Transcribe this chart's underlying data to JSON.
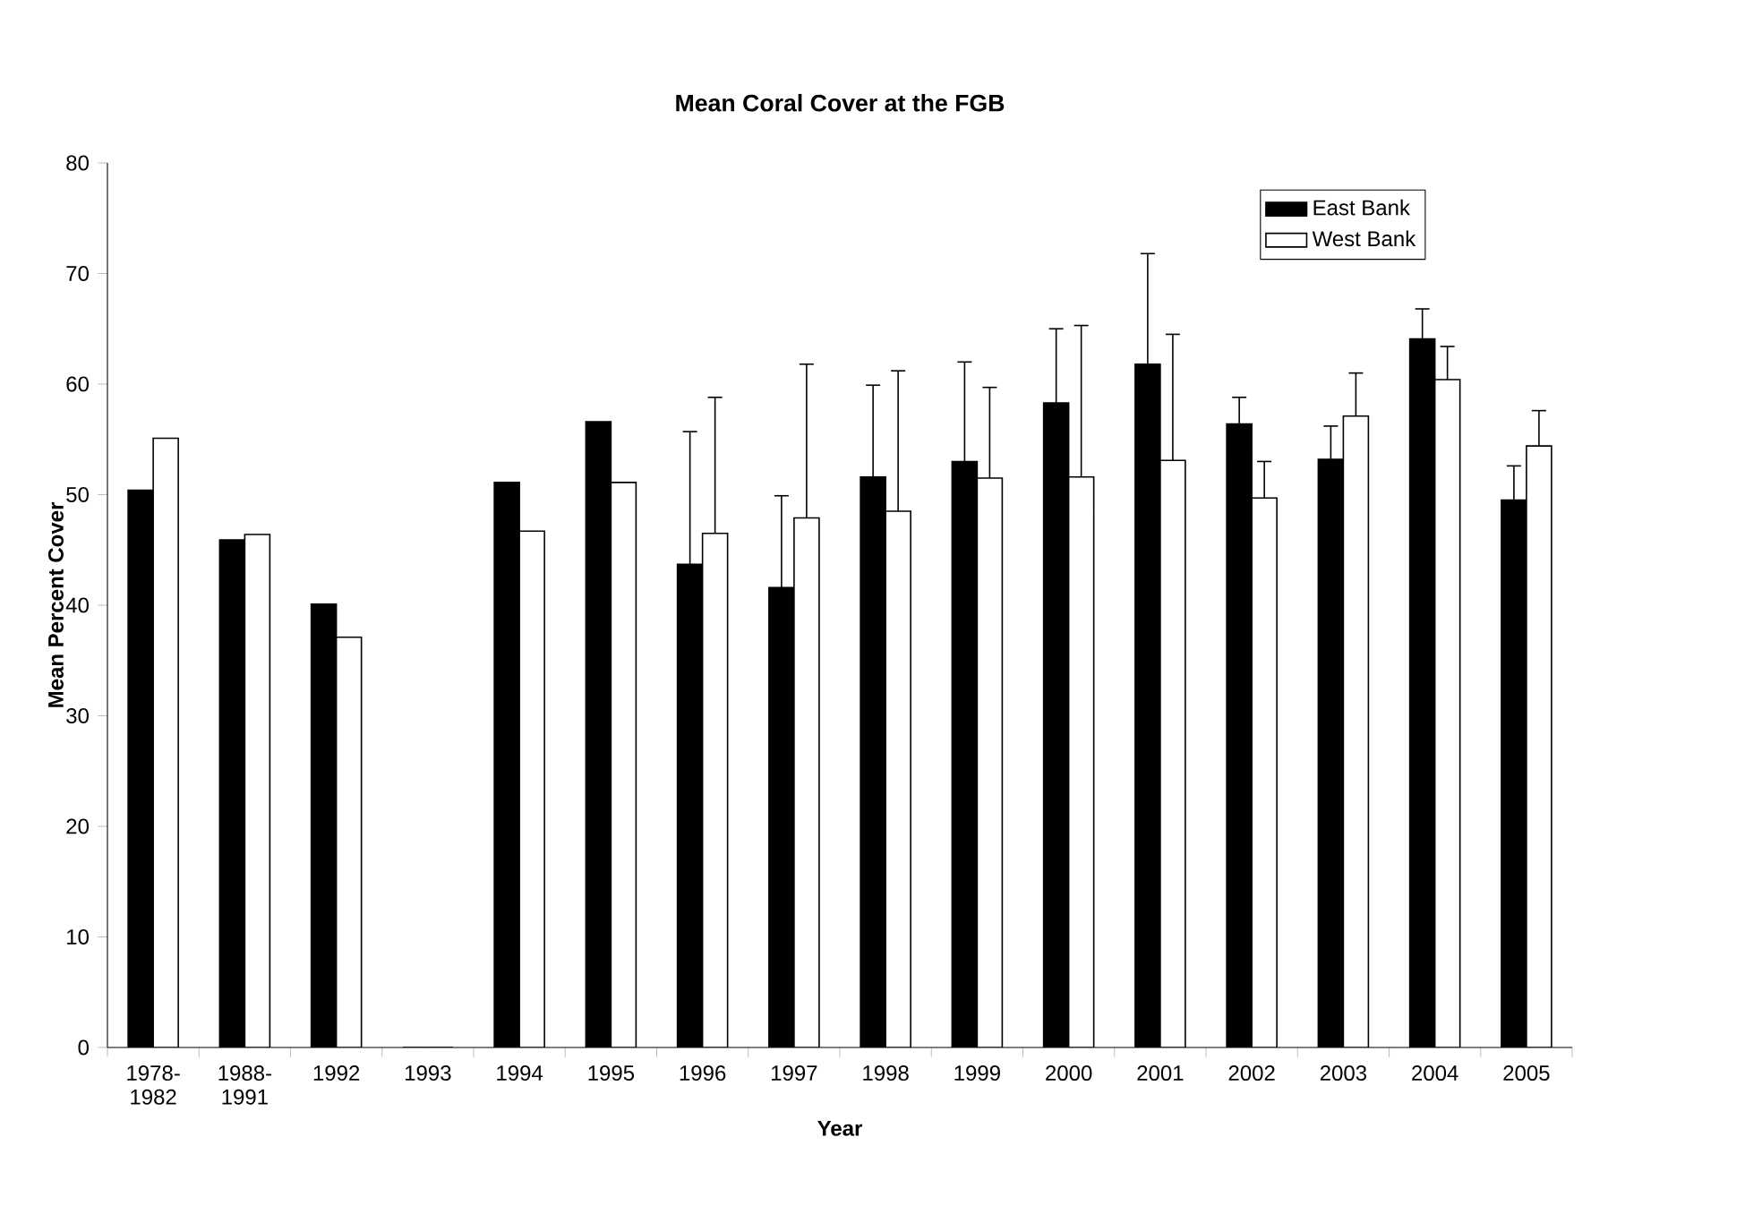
{
  "chart_data": {
    "type": "bar",
    "title": "Mean Coral Cover at the FGB",
    "xlabel": "Year",
    "ylabel": "Mean Percent Cover",
    "categories": [
      "1978-1982",
      "1988-1991",
      "1992",
      "1993",
      "1994",
      "1995",
      "1996",
      "1997",
      "1998",
      "1999",
      "2000",
      "2001",
      "2002",
      "2003",
      "2004",
      "2005"
    ],
    "series": [
      {
        "name": "East Bank",
        "color": "#000000",
        "values": [
          50.4,
          45.9,
          40.1,
          0,
          51.1,
          56.6,
          43.7,
          41.6,
          51.6,
          53.0,
          58.3,
          61.8,
          56.4,
          53.2,
          64.1,
          49.5
        ],
        "errors": [
          null,
          null,
          null,
          null,
          null,
          null,
          [
            43.7,
            55.7
          ],
          [
            41.6,
            49.9
          ],
          [
            51.6,
            59.9
          ],
          [
            53.0,
            62.0
          ],
          [
            58.3,
            65.0
          ],
          [
            61.8,
            71.8
          ],
          [
            56.4,
            58.8
          ],
          [
            53.2,
            56.2
          ],
          [
            64.1,
            66.8
          ],
          [
            49.5,
            52.6
          ]
        ]
      },
      {
        "name": "West Bank",
        "color": "#ffffff",
        "values": [
          55.1,
          46.4,
          37.1,
          0,
          46.7,
          51.1,
          46.5,
          47.9,
          48.5,
          51.5,
          51.6,
          53.1,
          49.7,
          57.1,
          60.4,
          54.4
        ],
        "errors": [
          null,
          null,
          null,
          null,
          null,
          null,
          [
            46.5,
            58.8
          ],
          [
            47.9,
            61.8
          ],
          [
            48.5,
            61.2
          ],
          [
            51.5,
            59.7
          ],
          [
            51.6,
            65.3
          ],
          [
            53.1,
            64.5
          ],
          [
            49.7,
            53.0
          ],
          [
            57.1,
            61.0
          ],
          [
            60.4,
            63.4
          ],
          [
            54.4,
            57.6
          ]
        ]
      }
    ],
    "ylim": [
      0,
      80
    ],
    "yticks": [
      0,
      10,
      20,
      30,
      40,
      50,
      60,
      70,
      80
    ],
    "legend": "top right"
  }
}
